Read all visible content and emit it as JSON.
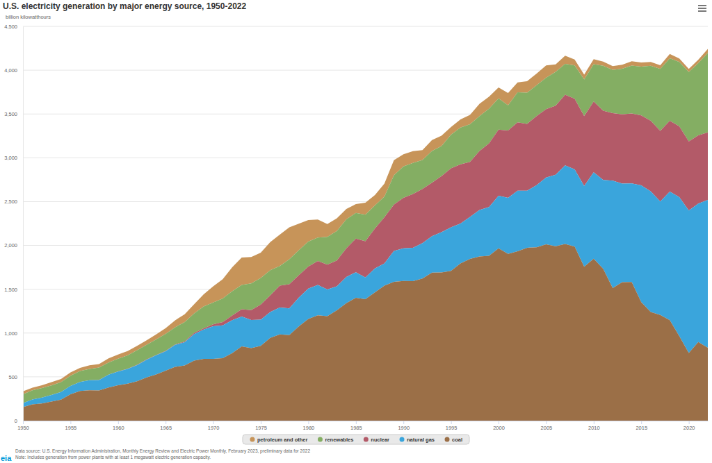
{
  "chart_data": {
    "type": "area",
    "title": "U.S. electricity generation by major energy source, 1950-2022",
    "subtitle": "billion kilowatthours",
    "source": "Data source: U.S. Energy Information Administration, Monthly Energy Review and Electric Power Monthly, February 2023, preliminary data for 2022",
    "note": "Note: Includes generation from power plants with at least 1 megawatt electric generation capacity.",
    "logo": "eia",
    "stacked": true,
    "grid": true,
    "legend": "bottom",
    "xlim": [
      1950,
      2022
    ],
    "xticks": [
      1950,
      1955,
      1960,
      1965,
      1970,
      1975,
      1980,
      1985,
      1990,
      1995,
      2000,
      2005,
      2010,
      2015,
      2020
    ],
    "ylim": [
      0,
      4500
    ],
    "yticks": [
      0,
      500,
      {
        "value": 1000,
        "label": "1,000"
      },
      {
        "value": 1500,
        "label": "1,500"
      },
      {
        "value": 2000,
        "label": "2,000"
      },
      {
        "value": 2500,
        "label": "2,500"
      },
      {
        "value": 3000,
        "label": "3,000"
      },
      {
        "value": 3500,
        "label": "3,500"
      },
      {
        "value": 4000,
        "label": "4,000"
      },
      {
        "value": 4500,
        "label": "4,500"
      }
    ],
    "x": [
      1950,
      1951,
      1952,
      1953,
      1954,
      1955,
      1956,
      1957,
      1958,
      1959,
      1960,
      1961,
      1962,
      1963,
      1964,
      1965,
      1966,
      1967,
      1968,
      1969,
      1970,
      1971,
      1972,
      1973,
      1974,
      1975,
      1976,
      1977,
      1978,
      1979,
      1980,
      1981,
      1982,
      1983,
      1984,
      1985,
      1986,
      1987,
      1988,
      1989,
      1990,
      1991,
      1992,
      1993,
      1994,
      1995,
      1996,
      1997,
      1998,
      1999,
      2000,
      2001,
      2002,
      2003,
      2004,
      2005,
      2006,
      2007,
      2008,
      2009,
      2010,
      2011,
      2012,
      2013,
      2014,
      2015,
      2016,
      2017,
      2018,
      2019,
      2020,
      2021,
      2022
    ],
    "series": [
      {
        "name": "petroleum and other",
        "color": "#c79459",
        "values": [
          33.7,
          29.6,
          31.6,
          38.3,
          34.9,
          37.1,
          36.8,
          40.1,
          39.5,
          46.6,
          48,
          49.5,
          48.5,
          51.9,
          57,
          64.8,
          79.6,
          89.3,
          104.3,
          138.3,
          184.2,
          220.2,
          274.3,
          314.3,
          300.9,
          289.1,
          320,
          358.2,
          365.1,
          303.5,
          246,
          206.4,
          146.8,
          144.5,
          119.8,
          100.2,
          136.6,
          118.5,
          148.9,
          172,
          140,
          134,
          113,
          126,
          118,
          88,
          93,
          106,
          142,
          137,
          125,
          140,
          113,
          131,
          134,
          140,
          87,
          92,
          67,
          55,
          56,
          48,
          43,
          45,
          51,
          47,
          43,
          42,
          49,
          40,
          37,
          40,
          45
        ]
      },
      {
        "name": "renewables",
        "color": "#84ae63",
        "values": [
          101,
          104,
          110,
          109,
          112,
          116,
          123,
          130,
          141,
          138,
          146,
          152,
          168,
          166,
          177,
          194,
          196,
          222,
          222,
          250,
          250,
          269,
          276,
          276,
          305,
          303,
          287,
          224,
          284,
          285,
          285,
          268,
          318,
          337,
          330,
          293,
          302,
          264,
          237,
          335,
          357,
          356,
          330,
          362,
          343,
          385,
          420,
          430,
          397,
          396,
          356,
          288,
          344,
          356,
          351,
          358,
          386,
          353,
          380,
          418,
          427,
          513,
          494,
          522,
          546,
          557,
          628,
          708,
          714,
          733,
          791,
          824,
          907
        ]
      },
      {
        "name": "nuclear",
        "color": "#b35a68",
        "values": [
          0,
          0,
          0,
          0,
          0,
          0,
          0,
          0.01,
          0.2,
          0.19,
          0.5,
          1.7,
          2.3,
          3.2,
          3.3,
          3.7,
          5.5,
          7.7,
          12.5,
          13.9,
          21.8,
          38.1,
          54.1,
          83.5,
          114,
          172.5,
          191.1,
          250.9,
          276.4,
          255.2,
          251.1,
          272.7,
          282.8,
          293.7,
          327.6,
          383.7,
          414,
          455.3,
          527,
          529.4,
          576.9,
          612.6,
          618.8,
          610.3,
          640.4,
          673.4,
          674.7,
          628.6,
          673.7,
          728.3,
          753.9,
          768.8,
          780.1,
          763.7,
          788.5,
          782,
          787.2,
          806.4,
          806.2,
          798.9,
          807,
          790.2,
          769.3,
          789,
          797.2,
          797.2,
          805.7,
          805,
          807.1,
          809.4,
          789.9,
          778.2,
          772.2
        ]
      },
      {
        "name": "natural gas",
        "color": "#3aa5dc",
        "values": [
          44.6,
          57,
          67.3,
          74.2,
          88.5,
          95.3,
          104,
          114.5,
          120,
          147.1,
          158,
          169.3,
          184.3,
          201.6,
          220.1,
          221.6,
          251.2,
          264.8,
          304.4,
          333.3,
          372.9,
          374,
          375.7,
          340.9,
          320.1,
          299.8,
          294.6,
          305.5,
          305.4,
          329.5,
          346.2,
          345.8,
          305.3,
          274.1,
          297.4,
          291.9,
          248.5,
          272.6,
          252.8,
          352.6,
          372.8,
          381.6,
          404.1,
          414.9,
          460.2,
          496.1,
          455.1,
          479.4,
          531.3,
          556.4,
          601,
          639.1,
          691,
          649.9,
          710.1,
          761,
          816.4,
          896.6,
          883,
          921,
          987.7,
          1013.7,
          1225.9,
          1124.8,
          1126.6,
          1333.5,
          1378.3,
          1296.4,
          1469.1,
          1585.8,
          1624.2,
          1579.2,
          1687.1
        ]
      },
      {
        "name": "coal",
        "color": "#9b6f47",
        "values": [
          154.5,
          185.2,
          195.4,
          218.8,
          239.1,
          301.4,
          338.5,
          346.4,
          344.4,
          378.4,
          403.1,
          421.9,
          450.2,
          493.9,
          526.2,
          570.9,
          613.5,
          630.5,
          684.9,
          706,
          704.4,
          713.1,
          771.1,
          847.7,
          828.4,
          852.8,
          944.4,
          985.2,
          975.7,
          1075,
          1161.6,
          1203.2,
          1192,
          1259.4,
          1341.7,
          1402.1,
          1385.8,
          1463.8,
          1540.7,
          1583.8,
          1594,
          1592,
          1621.2,
          1690.1,
          1690.7,
          1709.4,
          1795.2,
          1845,
          1873.5,
          1881.1,
          1966.3,
          1903.9,
          1933.1,
          1973.7,
          1978.3,
          2012.9,
          1990.5,
          2016.5,
          1985.8,
          1755.9,
          1847.3,
          1733.4,
          1514,
          1581.1,
          1581.7,
          1352.4,
          1239.1,
          1205.8,
          1146,
          964.9,
          773.4,
          897.9,
          831.5
        ]
      }
    ]
  }
}
